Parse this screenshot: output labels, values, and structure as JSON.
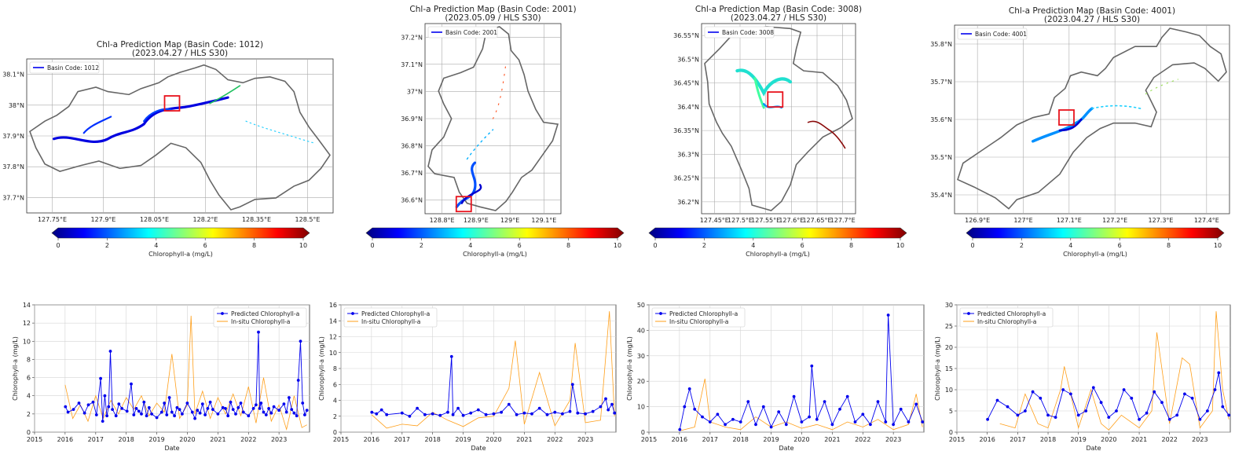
{
  "colorbar": {
    "label": "Chlorophyll-a (mg/L)",
    "ticks": [
      "0",
      "2",
      "4",
      "6",
      "8",
      "10"
    ],
    "colors": [
      "#00007f",
      "#0000ff",
      "#007fff",
      "#00ffff",
      "#7fff7f",
      "#ffff00",
      "#ff7f00",
      "#ff0000",
      "#7f0000"
    ]
  },
  "series_colors": {
    "predicted": "#0000ee",
    "insitu": "#ff9f1a",
    "highlight": "#e8121c",
    "boundary": "#666666"
  },
  "maps": [
    {
      "title": "Chl-a Prediction Map (Basin Code: 1012)",
      "subtitle": "(2023.04.27 / HLS S30)",
      "legend": "Basin Code: 1012",
      "xticks": [
        "127.75°E",
        "127.9°E",
        "128.05°E",
        "128.2°E",
        "128.35°E",
        "128.5°E"
      ],
      "yticks": [
        "38.1°N",
        "38°N",
        "37.9°N",
        "37.8°N",
        "37.7°N"
      ]
    },
    {
      "title": "Chl-a Prediction Map (Basin Code: 2001)",
      "subtitle": "(2023.05.09 / HLS S30)",
      "legend": "Basin Code: 2001",
      "xticks": [
        "128.8°E",
        "128.9°E",
        "129°E",
        "129.1°E"
      ],
      "yticks": [
        "37.2°N",
        "37.1°N",
        "37°N",
        "36.9°N",
        "36.8°N",
        "36.7°N",
        "36.6°N"
      ]
    },
    {
      "title": "Chl-a Prediction Map (Basin Code: 3008)",
      "subtitle": "(2023.04.27 / HLS S30)",
      "legend": "Basin Code: 3008",
      "xticks": [
        "127.45°E",
        "127.5°E",
        "127.55°E",
        "127.6°E",
        "127.65°E",
        "127.7°E"
      ],
      "yticks": [
        "36.55°N",
        "36.5°N",
        "36.45°N",
        "36.4°N",
        "36.35°N",
        "36.3°N",
        "36.25°N",
        "36.2°N"
      ]
    },
    {
      "title": "Chl-a Prediction Map (Basin Code: 4001)",
      "subtitle": "(2023.04.27 / HLS S30)",
      "legend": "Basin Code: 4001",
      "xticks": [
        "126.9°E",
        "127°E",
        "127.1°E",
        "127.2°E",
        "127.3°E",
        "127.4°E"
      ],
      "yticks": [
        "35.8°N",
        "35.7°N",
        "35.6°N",
        "35.5°N",
        "35.4°N"
      ]
    }
  ],
  "chart_data": [
    {
      "type": "line",
      "xlabel": "Date",
      "ylabel": "Chlorophyll-a (mg/L)",
      "xlim": [
        "2015-01-01",
        "2024-01-01"
      ],
      "xticks": [
        "2015",
        "2016",
        "2017",
        "2018",
        "2019",
        "2020",
        "2021",
        "2022",
        "2023"
      ],
      "ylim": [
        0,
        14
      ],
      "yticks": [
        0,
        2,
        4,
        6,
        8,
        10,
        12,
        14
      ],
      "grid": true,
      "legend": "top-right",
      "series": [
        {
          "name": "Predicted Chlorophyll-a",
          "x": [
            "2016-01-05",
            "2016-02-05",
            "2016-04-10",
            "2016-06-15",
            "2016-08-20",
            "2016-10-05",
            "2016-12-01",
            "2017-01-10",
            "2017-03-01",
            "2017-03-25",
            "2017-04-20",
            "2017-05-15",
            "2017-06-05",
            "2017-06-25",
            "2017-07-20",
            "2017-09-01",
            "2017-10-05",
            "2017-11-10",
            "2018-01-10",
            "2018-03-01",
            "2018-04-01",
            "2018-05-01",
            "2018-06-01",
            "2018-07-01",
            "2018-08-01",
            "2018-09-01",
            "2018-10-01",
            "2018-11-01",
            "2019-01-01",
            "2019-03-01",
            "2019-04-01",
            "2019-05-01",
            "2019-06-01",
            "2019-07-01",
            "2019-08-01",
            "2019-09-01",
            "2019-10-01",
            "2019-11-01",
            "2020-01-01",
            "2020-03-01",
            "2020-04-01",
            "2020-05-01",
            "2020-06-01",
            "2020-07-01",
            "2020-08-01",
            "2020-09-01",
            "2020-10-01",
            "2020-11-01",
            "2021-01-01",
            "2021-03-01",
            "2021-04-01",
            "2021-05-01",
            "2021-06-01",
            "2021-07-01",
            "2021-08-01",
            "2021-09-01",
            "2021-10-01",
            "2021-11-01",
            "2022-01-01",
            "2022-03-01",
            "2022-04-01",
            "2022-05-01",
            "2022-05-15",
            "2022-06-01",
            "2022-07-01",
            "2022-08-01",
            "2022-09-01",
            "2022-10-01",
            "2022-11-01",
            "2023-01-01",
            "2023-03-01",
            "2023-04-01",
            "2023-05-01",
            "2023-06-01",
            "2023-07-01",
            "2023-08-01",
            "2023-08-20",
            "2023-09-15",
            "2023-10-10",
            "2023-11-05",
            "2023-12-01"
          ],
          "y": [
            2.8,
            2.2,
            2.5,
            3.2,
            2.1,
            3.0,
            3.3,
            1.9,
            5.9,
            1.2,
            4.0,
            1.8,
            2.8,
            8.9,
            2.5,
            1.8,
            3.1,
            2.6,
            2.3,
            5.3,
            1.9,
            2.6,
            2.3,
            2.0,
            3.3,
            1.8,
            2.7,
            2.0,
            1.6,
            2.2,
            3.2,
            1.9,
            3.8,
            2.2,
            1.8,
            2.7,
            2.5,
            2.0,
            3.2,
            2.2,
            1.5,
            2.4,
            2.1,
            3.1,
            1.9,
            2.6,
            3.3,
            2.5,
            2.0,
            2.7,
            2.6,
            1.8,
            3.3,
            2.5,
            2.0,
            2.7,
            3.2,
            2.2,
            1.8,
            2.6,
            3.0,
            11.0,
            2.6,
            3.2,
            2.2,
            1.9,
            2.6,
            2.1,
            2.8,
            2.4,
            3.1,
            2.2,
            3.8,
            2.5,
            2.1,
            1.8,
            5.7,
            10.0,
            3.2,
            1.9,
            2.4
          ]
        },
        {
          "name": "In-situ Chlorophyll-a",
          "x": [
            "2016-01-01",
            "2016-04-01",
            "2016-07-01",
            "2016-10-01",
            "2017-01-01",
            "2017-04-01",
            "2017-07-01",
            "2017-10-01",
            "2018-01-01",
            "2018-04-01",
            "2018-07-01",
            "2018-10-01",
            "2019-01-01",
            "2019-04-01",
            "2019-07-01",
            "2019-10-01",
            "2020-01-01",
            "2020-02-15",
            "2020-04-01",
            "2020-07-01",
            "2020-10-01",
            "2021-01-01",
            "2021-04-01",
            "2021-07-01",
            "2021-10-01",
            "2022-01-01",
            "2022-04-01",
            "2022-07-01",
            "2022-10-01",
            "2023-01-01",
            "2023-04-01",
            "2023-07-01",
            "2023-10-01",
            "2023-12-01"
          ],
          "y": [
            5.2,
            1.5,
            3.0,
            1.2,
            4.0,
            1.5,
            3.5,
            2.0,
            3.8,
            2.5,
            4.0,
            1.8,
            3.2,
            2.2,
            8.6,
            1.5,
            3.0,
            12.8,
            2.0,
            4.5,
            1.5,
            3.8,
            2.0,
            4.2,
            1.8,
            5.0,
            1.0,
            6.0,
            1.2,
            3.0,
            0.3,
            4.0,
            0.5,
            0.8
          ]
        }
      ]
    },
    {
      "type": "line",
      "xlabel": "Date",
      "ylabel": "Chlorophyll-a (mg/L)",
      "xlim": [
        "2015-01-01",
        "2024-01-01"
      ],
      "xticks": [
        "2015",
        "2016",
        "2017",
        "2018",
        "2019",
        "2020",
        "2021",
        "2022",
        "2023"
      ],
      "ylim": [
        0,
        16
      ],
      "yticks": [
        0,
        2,
        4,
        6,
        8,
        10,
        12,
        14,
        16
      ],
      "grid": true,
      "legend": "top-left",
      "series": [
        {
          "name": "Predicted Chlorophyll-a",
          "x": [
            "2016-01-05",
            "2016-03-01",
            "2016-05-01",
            "2016-07-01",
            "2017-01-01",
            "2017-04-01",
            "2017-07-01",
            "2017-10-01",
            "2018-01-01",
            "2018-04-01",
            "2018-07-01",
            "2018-08-15",
            "2018-09-01",
            "2018-11-01",
            "2019-01-01",
            "2019-04-01",
            "2019-07-01",
            "2019-10-01",
            "2020-01-01",
            "2020-04-01",
            "2020-07-01",
            "2020-10-01",
            "2021-01-01",
            "2021-04-01",
            "2021-07-01",
            "2021-10-01",
            "2022-01-01",
            "2022-04-01",
            "2022-07-01",
            "2022-08-01",
            "2022-10-01",
            "2023-01-01",
            "2023-04-01",
            "2023-07-01",
            "2023-09-01",
            "2023-10-01",
            "2023-11-15",
            "2023-12-15"
          ],
          "y": [
            2.5,
            2.3,
            2.8,
            2.2,
            2.4,
            2.0,
            3.0,
            2.2,
            2.3,
            2.1,
            2.5,
            9.5,
            2.2,
            3.0,
            2.1,
            2.4,
            2.8,
            2.2,
            2.3,
            2.5,
            3.5,
            2.2,
            2.4,
            2.3,
            3.0,
            2.2,
            2.5,
            2.3,
            2.6,
            6.0,
            2.4,
            2.3,
            2.6,
            3.2,
            4.2,
            2.8,
            3.5,
            2.4
          ]
        },
        {
          "name": "In-situ Chlorophyll-a",
          "x": [
            "2016-01-01",
            "2016-07-01",
            "2017-01-01",
            "2017-07-01",
            "2018-01-01",
            "2018-07-01",
            "2019-01-01",
            "2019-07-01",
            "2020-01-01",
            "2020-07-01",
            "2020-09-15",
            "2021-01-01",
            "2021-07-01",
            "2022-01-01",
            "2022-07-01",
            "2022-09-01",
            "2023-01-01",
            "2023-07-01",
            "2023-10-15",
            "2023-12-15"
          ],
          "y": [
            2.2,
            0.5,
            1.0,
            0.8,
            2.5,
            1.5,
            0.7,
            1.8,
            2.0,
            5.5,
            11.5,
            1.0,
            7.5,
            0.8,
            4.0,
            11.2,
            1.2,
            1.5,
            15.2,
            2.0
          ]
        }
      ]
    },
    {
      "type": "line",
      "xlabel": "Date",
      "ylabel": "Chlorophyll-a (mg/L)",
      "xlim": [
        "2015-01-01",
        "2024-01-01"
      ],
      "xticks": [
        "2015",
        "2016",
        "2017",
        "2018",
        "2019",
        "2020",
        "2021",
        "2022",
        "2023"
      ],
      "ylim": [
        0,
        50
      ],
      "yticks": [
        0,
        10,
        20,
        30,
        40,
        50
      ],
      "grid": true,
      "legend": "top-left",
      "series": [
        {
          "name": "Predicted Chlorophyll-a",
          "x": [
            "2016-01-05",
            "2016-03-01",
            "2016-05-01",
            "2016-07-01",
            "2016-10-01",
            "2017-01-01",
            "2017-04-01",
            "2017-07-01",
            "2017-10-01",
            "2018-01-01",
            "2018-04-01",
            "2018-07-01",
            "2018-10-01",
            "2019-01-01",
            "2019-04-01",
            "2019-07-01",
            "2019-10-01",
            "2020-01-01",
            "2020-04-01",
            "2020-05-01",
            "2020-07-01",
            "2020-10-01",
            "2021-01-01",
            "2021-04-01",
            "2021-07-01",
            "2021-10-01",
            "2022-01-01",
            "2022-04-01",
            "2022-07-01",
            "2022-10-01",
            "2022-11-01",
            "2023-01-01",
            "2023-04-01",
            "2023-07-01",
            "2023-10-01",
            "2023-12-15"
          ],
          "y": [
            1.0,
            10.0,
            17.0,
            9.0,
            6.0,
            4.0,
            7.0,
            3.0,
            5.0,
            4.0,
            12.0,
            3.0,
            10.0,
            2.0,
            8.0,
            3.0,
            14.0,
            4.0,
            6.0,
            26.0,
            5.0,
            12.0,
            3.0,
            9.0,
            14.0,
            4.0,
            7.0,
            3.0,
            12.0,
            4.0,
            46.0,
            3.0,
            9.0,
            4.0,
            11.0,
            4.0
          ]
        },
        {
          "name": "In-situ Chlorophyll-a",
          "x": [
            "2016-01-01",
            "2016-07-01",
            "2016-11-01",
            "2017-01-01",
            "2017-07-01",
            "2018-01-01",
            "2018-07-01",
            "2019-01-01",
            "2019-07-01",
            "2020-01-01",
            "2020-07-01",
            "2021-01-01",
            "2021-07-01",
            "2022-01-01",
            "2022-07-01",
            "2023-01-01",
            "2023-07-01",
            "2023-10-01",
            "2023-12-15"
          ],
          "y": [
            0.5,
            2.0,
            21.0,
            4.0,
            2.0,
            1.0,
            6.0,
            2.0,
            4.0,
            1.5,
            3.0,
            1.0,
            4.0,
            2.0,
            5.0,
            1.0,
            3.0,
            15.0,
            2.0
          ]
        }
      ]
    },
    {
      "type": "line",
      "xlabel": "Date",
      "ylabel": "Chlorophyll-a (mg/L)",
      "xlim": [
        "2015-01-01",
        "2024-01-01"
      ],
      "xticks": [
        "2015",
        "2016",
        "2017",
        "2018",
        "2019",
        "2020",
        "2021",
        "2022",
        "2023"
      ],
      "ylim": [
        0,
        30
      ],
      "yticks": [
        0,
        5,
        10,
        15,
        20,
        25,
        30
      ],
      "grid": true,
      "legend": "top-left",
      "series": [
        {
          "name": "Predicted Chlorophyll-a",
          "x": [
            "2016-01-05",
            "2016-05-01",
            "2016-09-01",
            "2017-01-01",
            "2017-04-01",
            "2017-07-01",
            "2017-10-01",
            "2018-01-01",
            "2018-04-01",
            "2018-07-01",
            "2018-10-01",
            "2019-01-01",
            "2019-04-01",
            "2019-07-01",
            "2019-10-01",
            "2020-01-01",
            "2020-04-01",
            "2020-07-01",
            "2020-10-01",
            "2021-01-01",
            "2021-04-01",
            "2021-07-01",
            "2021-10-01",
            "2022-01-01",
            "2022-04-01",
            "2022-07-01",
            "2022-10-01",
            "2023-01-01",
            "2023-04-01",
            "2023-07-01",
            "2023-08-15",
            "2023-10-01",
            "2023-12-15"
          ],
          "y": [
            3.0,
            7.5,
            6.0,
            4.0,
            5.0,
            9.5,
            8.0,
            4.0,
            3.5,
            10.0,
            9.0,
            4.0,
            5.0,
            10.5,
            7.0,
            3.5,
            5.0,
            10.0,
            8.0,
            3.0,
            4.5,
            9.5,
            7.0,
            3.0,
            4.0,
            9.0,
            8.0,
            3.0,
            5.0,
            10.0,
            14.0,
            6.0,
            4.0
          ]
        },
        {
          "name": "In-situ Chlorophyll-a",
          "x": [
            "2016-06-01",
            "2016-12-01",
            "2017-04-01",
            "2017-09-01",
            "2018-01-01",
            "2018-06-01",
            "2018-07-15",
            "2019-01-01",
            "2019-06-01",
            "2019-10-01",
            "2020-01-01",
            "2020-06-01",
            "2021-01-01",
            "2021-06-01",
            "2021-08-01",
            "2022-01-01",
            "2022-06-01",
            "2022-09-01",
            "2023-01-01",
            "2023-06-01",
            "2023-07-15",
            "2023-10-01",
            "2023-12-15"
          ],
          "y": [
            2.0,
            1.0,
            9.0,
            2.0,
            1.0,
            10.0,
            15.5,
            1.0,
            10.0,
            2.0,
            0.5,
            4.0,
            1.0,
            5.0,
            23.5,
            2.0,
            17.5,
            16.0,
            1.0,
            5.0,
            28.5,
            10.0,
            3.0
          ]
        }
      ]
    }
  ]
}
